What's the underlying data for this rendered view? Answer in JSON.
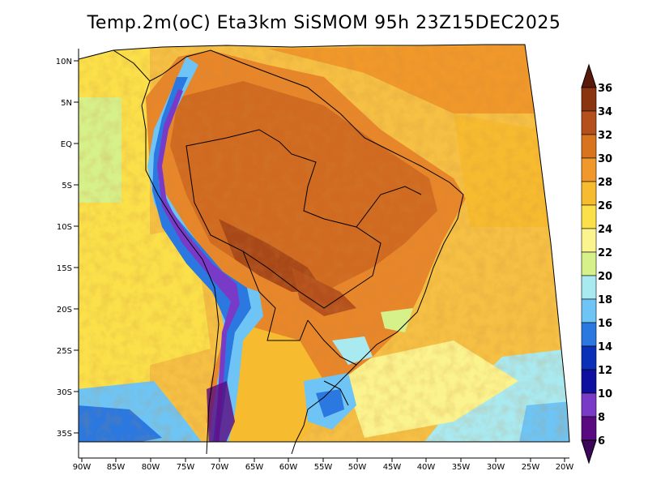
{
  "title": "Temp.2m(oC) Eta3km SiSMOM 95h 23Z15DEC2025",
  "map": {
    "lat_labels": [
      "10N",
      "5N",
      "EQ",
      "5S",
      "10S",
      "15S",
      "20S",
      "25S",
      "30S",
      "35S"
    ],
    "lon_labels": [
      "90W",
      "85W",
      "80W",
      "75W",
      "70W",
      "65W",
      "60W",
      "55W",
      "50W",
      "45W",
      "40W",
      "35W",
      "30W",
      "25W",
      "20W"
    ]
  },
  "colorbar": {
    "labels": [
      "36",
      "34",
      "32",
      "30",
      "28",
      "26",
      "24",
      "22",
      "20",
      "18",
      "16",
      "14",
      "12",
      "10",
      "8",
      "6"
    ],
    "colors": [
      "#5a1a0a",
      "#8a3410",
      "#b5501c",
      "#d9741e",
      "#f0982a",
      "#f7bb30",
      "#fbe04a",
      "#fbf38e",
      "#d6f08a",
      "#a9e9f0",
      "#6ec5f5",
      "#2a78e0",
      "#0a30b8",
      "#1010a0",
      "#7a3ac8",
      "#5a0a80",
      "#3c065a"
    ]
  }
}
